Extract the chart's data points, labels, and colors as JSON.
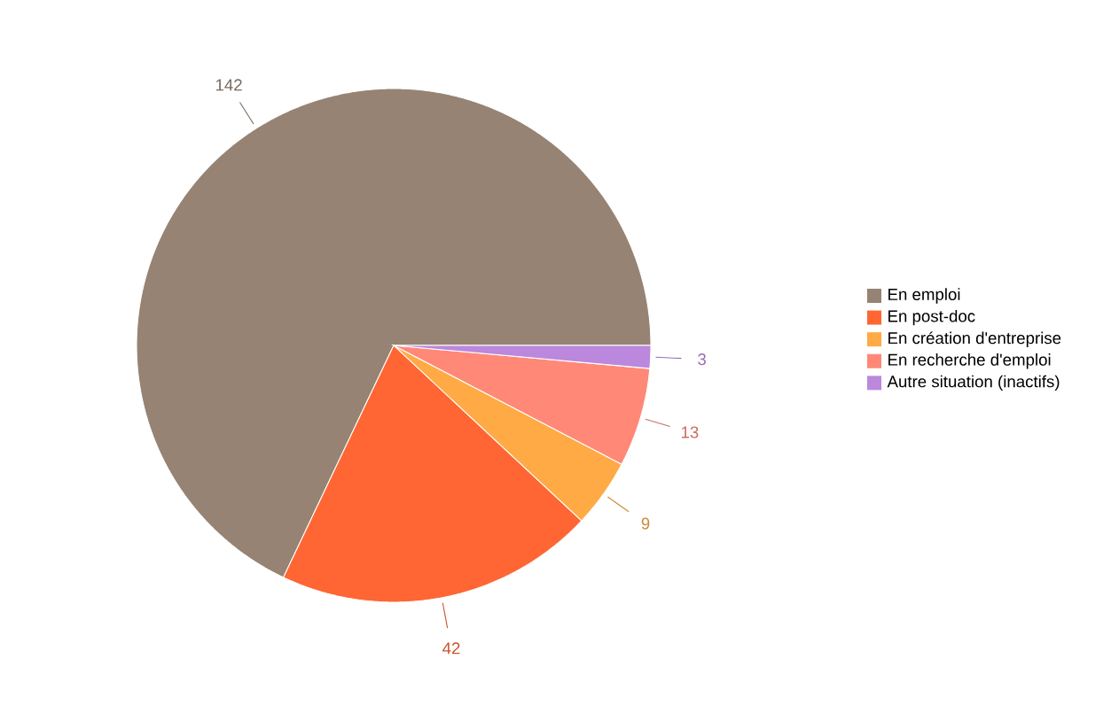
{
  "chart_data": {
    "type": "pie",
    "categories": [
      "En emploi",
      "En post-doc",
      "En création d'entreprise",
      "En recherche d'emploi",
      "Autre situation (inactifs)"
    ],
    "values": [
      142,
      42,
      9,
      13,
      3
    ],
    "colors": [
      "#968373",
      "#ff6633",
      "#ffaa44",
      "#ff8877",
      "#bb88dd"
    ],
    "data_labels": true,
    "legend": "right"
  }
}
